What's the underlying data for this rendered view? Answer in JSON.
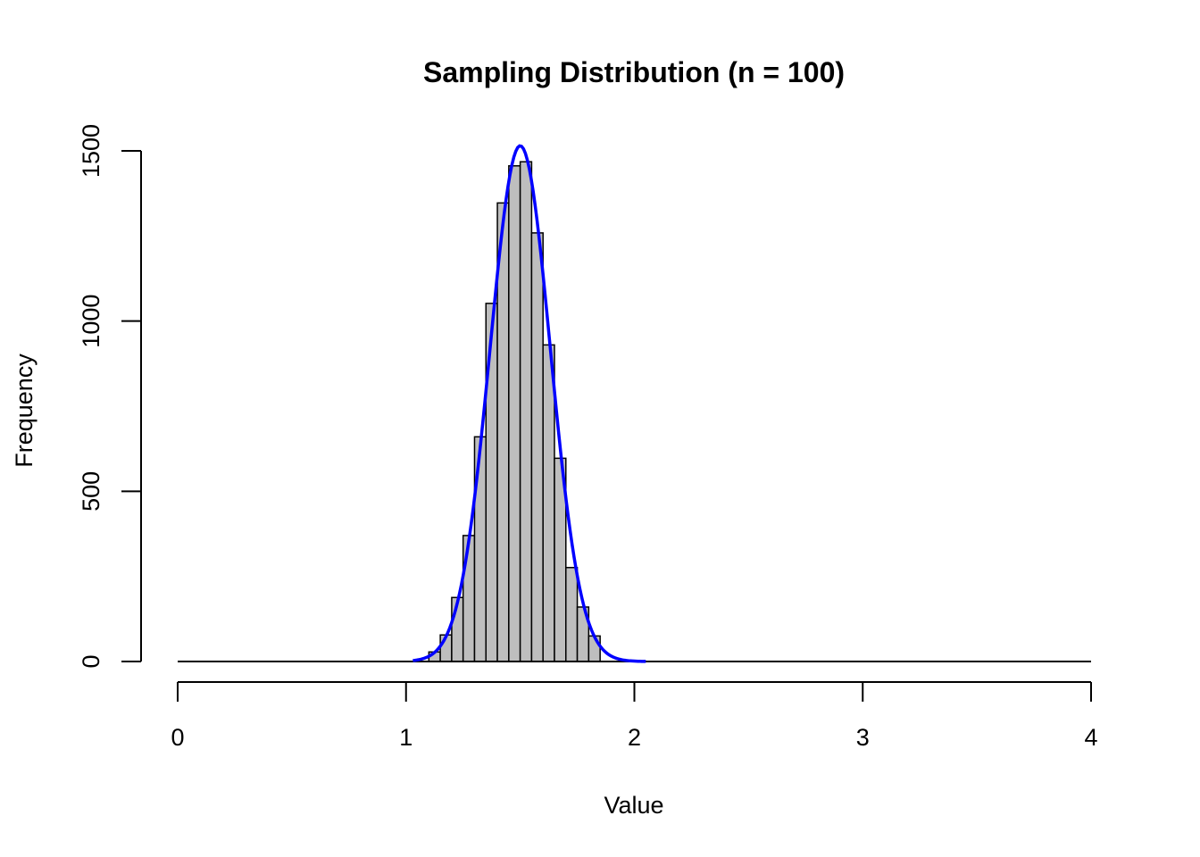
{
  "chart_data": {
    "type": "histogram",
    "title": "Sampling Distribution (n = 100)",
    "xlabel": "Value",
    "ylabel": "Frequency",
    "xlim": [
      0,
      4
    ],
    "ylim": [
      0,
      1500
    ],
    "x_ticks": [
      "0",
      "1",
      "2",
      "3",
      "4"
    ],
    "y_ticks": [
      "0",
      "500",
      "1000",
      "1500"
    ],
    "bar_fill": "#bebebe",
    "bar_stroke": "#000000",
    "bins": [
      {
        "x0": 1.1,
        "x1": 1.15,
        "count": 28
      },
      {
        "x0": 1.15,
        "x1": 1.2,
        "count": 78
      },
      {
        "x0": 1.2,
        "x1": 1.25,
        "count": 188
      },
      {
        "x0": 1.25,
        "x1": 1.3,
        "count": 370
      },
      {
        "x0": 1.3,
        "x1": 1.35,
        "count": 660
      },
      {
        "x0": 1.35,
        "x1": 1.4,
        "count": 1052
      },
      {
        "x0": 1.4,
        "x1": 1.45,
        "count": 1347
      },
      {
        "x0": 1.45,
        "x1": 1.5,
        "count": 1456
      },
      {
        "x0": 1.5,
        "x1": 1.55,
        "count": 1468
      },
      {
        "x0": 1.55,
        "x1": 1.6,
        "count": 1259
      },
      {
        "x0": 1.6,
        "x1": 1.65,
        "count": 930
      },
      {
        "x0": 1.65,
        "x1": 1.7,
        "count": 597
      },
      {
        "x0": 1.7,
        "x1": 1.75,
        "count": 276
      },
      {
        "x0": 1.75,
        "x1": 1.8,
        "count": 160
      },
      {
        "x0": 1.8,
        "x1": 1.85,
        "count": 75
      }
    ],
    "curve": {
      "color": "#0000ff",
      "mean": 1.5,
      "sd": 0.132,
      "peak": 1515,
      "x_range": [
        1.03,
        2.05
      ]
    }
  }
}
